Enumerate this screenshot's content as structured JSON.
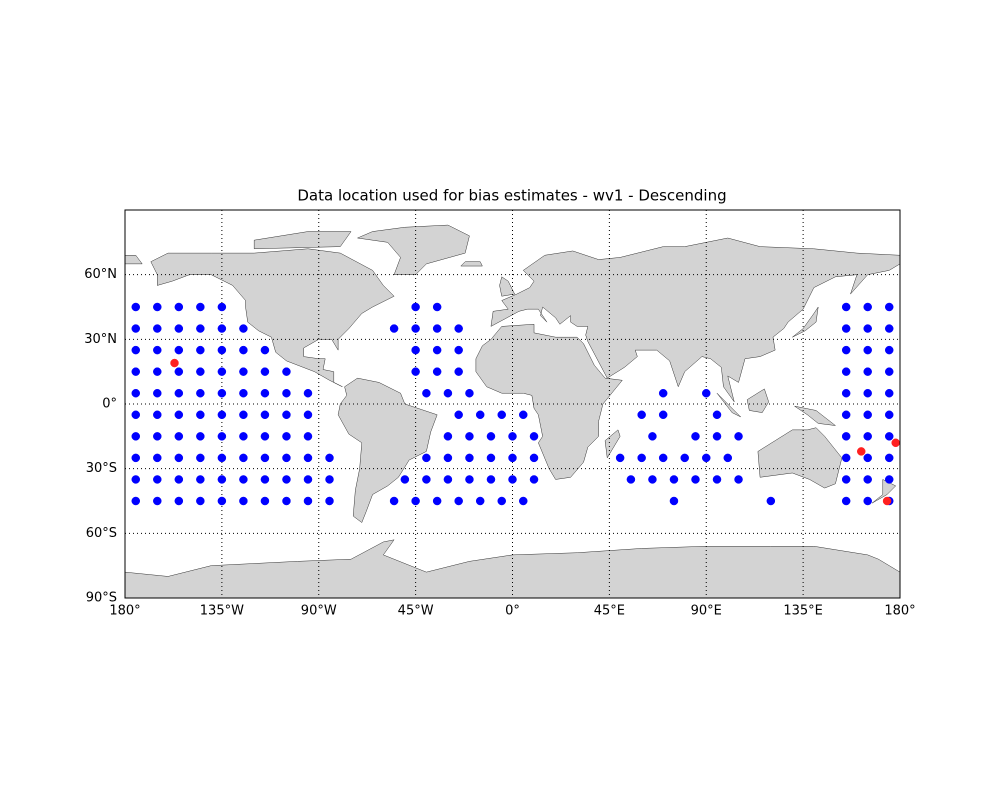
{
  "chart_data": {
    "type": "scatter",
    "title": "Data location used for bias estimates - wv1 - Descending",
    "xlim": [
      -180,
      180
    ],
    "ylim": [
      -90,
      90
    ],
    "xticks": [
      {
        "value": -180,
        "label": "180°"
      },
      {
        "value": -135,
        "label": "135°W"
      },
      {
        "value": -90,
        "label": "90°W"
      },
      {
        "value": -45,
        "label": "45°W"
      },
      {
        "value": 0,
        "label": "0°"
      },
      {
        "value": 45,
        "label": "45°E"
      },
      {
        "value": 90,
        "label": "90°E"
      },
      {
        "value": 135,
        "label": "135°E"
      },
      {
        "value": 180,
        "label": "180°"
      }
    ],
    "yticks": [
      {
        "value": -90,
        "label": "90°S"
      },
      {
        "value": -60,
        "label": "60°S"
      },
      {
        "value": -30,
        "label": "30°S"
      },
      {
        "value": 0,
        "label": "0°"
      },
      {
        "value": 30,
        "label": "30°N"
      },
      {
        "value": 60,
        "label": "60°N"
      }
    ],
    "grid": true,
    "series": [
      {
        "color": "#0000ff",
        "x": [
          -175,
          -165,
          -155,
          -145,
          -135,
          -175,
          -165,
          -155,
          -145,
          -135,
          -125,
          -175,
          -165,
          -155,
          -145,
          -135,
          -125,
          -115,
          -175,
          -165,
          -155,
          -145,
          -135,
          -125,
          -115,
          -105,
          -175,
          -165,
          -155,
          -145,
          -135,
          -125,
          -115,
          -105,
          -95,
          -175,
          -165,
          -155,
          -145,
          -135,
          -125,
          -115,
          -105,
          -95,
          -175,
          -165,
          -155,
          -145,
          -135,
          -125,
          -115,
          -105,
          -95,
          -175,
          -165,
          -155,
          -145,
          -135,
          -125,
          -115,
          -105,
          -95,
          -85,
          -175,
          -165,
          -155,
          -145,
          -135,
          -125,
          -115,
          -105,
          -95,
          -85,
          -175,
          -165,
          -155,
          -145,
          -135,
          -125,
          -115,
          -105,
          -95,
          -85,
          -45,
          -35,
          -55,
          -45,
          -35,
          -25,
          -45,
          -35,
          -25,
          -45,
          -35,
          -25,
          -40,
          -30,
          -20,
          -25,
          -15,
          -5,
          5,
          -30,
          -20,
          -10,
          0,
          10,
          -40,
          -30,
          -20,
          -10,
          0,
          10,
          -50,
          -40,
          -30,
          -20,
          -10,
          0,
          10,
          -55,
          -45,
          -35,
          -25,
          -15,
          -5,
          5,
          50,
          60,
          70,
          80,
          90,
          100,
          55,
          65,
          75,
          85,
          95,
          105,
          65,
          85,
          95,
          105,
          60,
          70,
          95,
          70,
          90,
          75,
          120,
          155,
          165,
          175,
          155,
          165,
          175,
          155,
          165,
          175,
          155,
          165,
          175,
          155,
          165,
          175,
          155,
          165,
          175,
          155,
          165,
          175,
          155,
          165,
          175,
          155,
          165,
          175,
          155,
          165,
          175
        ],
        "y": [
          45,
          45,
          45,
          45,
          45,
          35,
          35,
          35,
          35,
          35,
          35,
          25,
          25,
          25,
          25,
          25,
          25,
          25,
          15,
          15,
          15,
          15,
          15,
          15,
          15,
          15,
          5,
          5,
          5,
          5,
          5,
          5,
          5,
          5,
          5,
          -5,
          -5,
          -5,
          -5,
          -5,
          -5,
          -5,
          -5,
          -5,
          -15,
          -15,
          -15,
          -15,
          -15,
          -15,
          -15,
          -15,
          -15,
          -25,
          -25,
          -25,
          -25,
          -25,
          -25,
          -25,
          -25,
          -25,
          -25,
          -35,
          -35,
          -35,
          -35,
          -35,
          -35,
          -35,
          -35,
          -35,
          -35,
          -45,
          -45,
          -45,
          -45,
          -45,
          -45,
          -45,
          -45,
          -45,
          -45,
          45,
          45,
          35,
          35,
          35,
          35,
          25,
          25,
          25,
          15,
          15,
          15,
          5,
          5,
          5,
          -5,
          -5,
          -5,
          -5,
          -15,
          -15,
          -15,
          -15,
          -15,
          -25,
          -25,
          -25,
          -25,
          -25,
          -25,
          -35,
          -35,
          -35,
          -35,
          -35,
          -35,
          -35,
          -45,
          -45,
          -45,
          -45,
          -45,
          -45,
          -45,
          -25,
          -25,
          -25,
          -25,
          -25,
          -25,
          -35,
          -35,
          -35,
          -35,
          -35,
          -35,
          -15,
          -15,
          -15,
          -15,
          -5,
          -5,
          -5,
          5,
          5,
          -45,
          -45,
          45,
          45,
          45,
          35,
          35,
          35,
          25,
          25,
          25,
          15,
          15,
          15,
          5,
          5,
          5,
          -5,
          -5,
          -5,
          -15,
          -15,
          -15,
          -25,
          -25,
          -25,
          -35,
          -35,
          -35,
          -45,
          -45,
          -45
        ]
      },
      {
        "color": "#ff2020",
        "x": [
          -157,
          174,
          178,
          162
        ],
        "y": [
          19,
          -45,
          -18,
          -22
        ]
      }
    ]
  }
}
